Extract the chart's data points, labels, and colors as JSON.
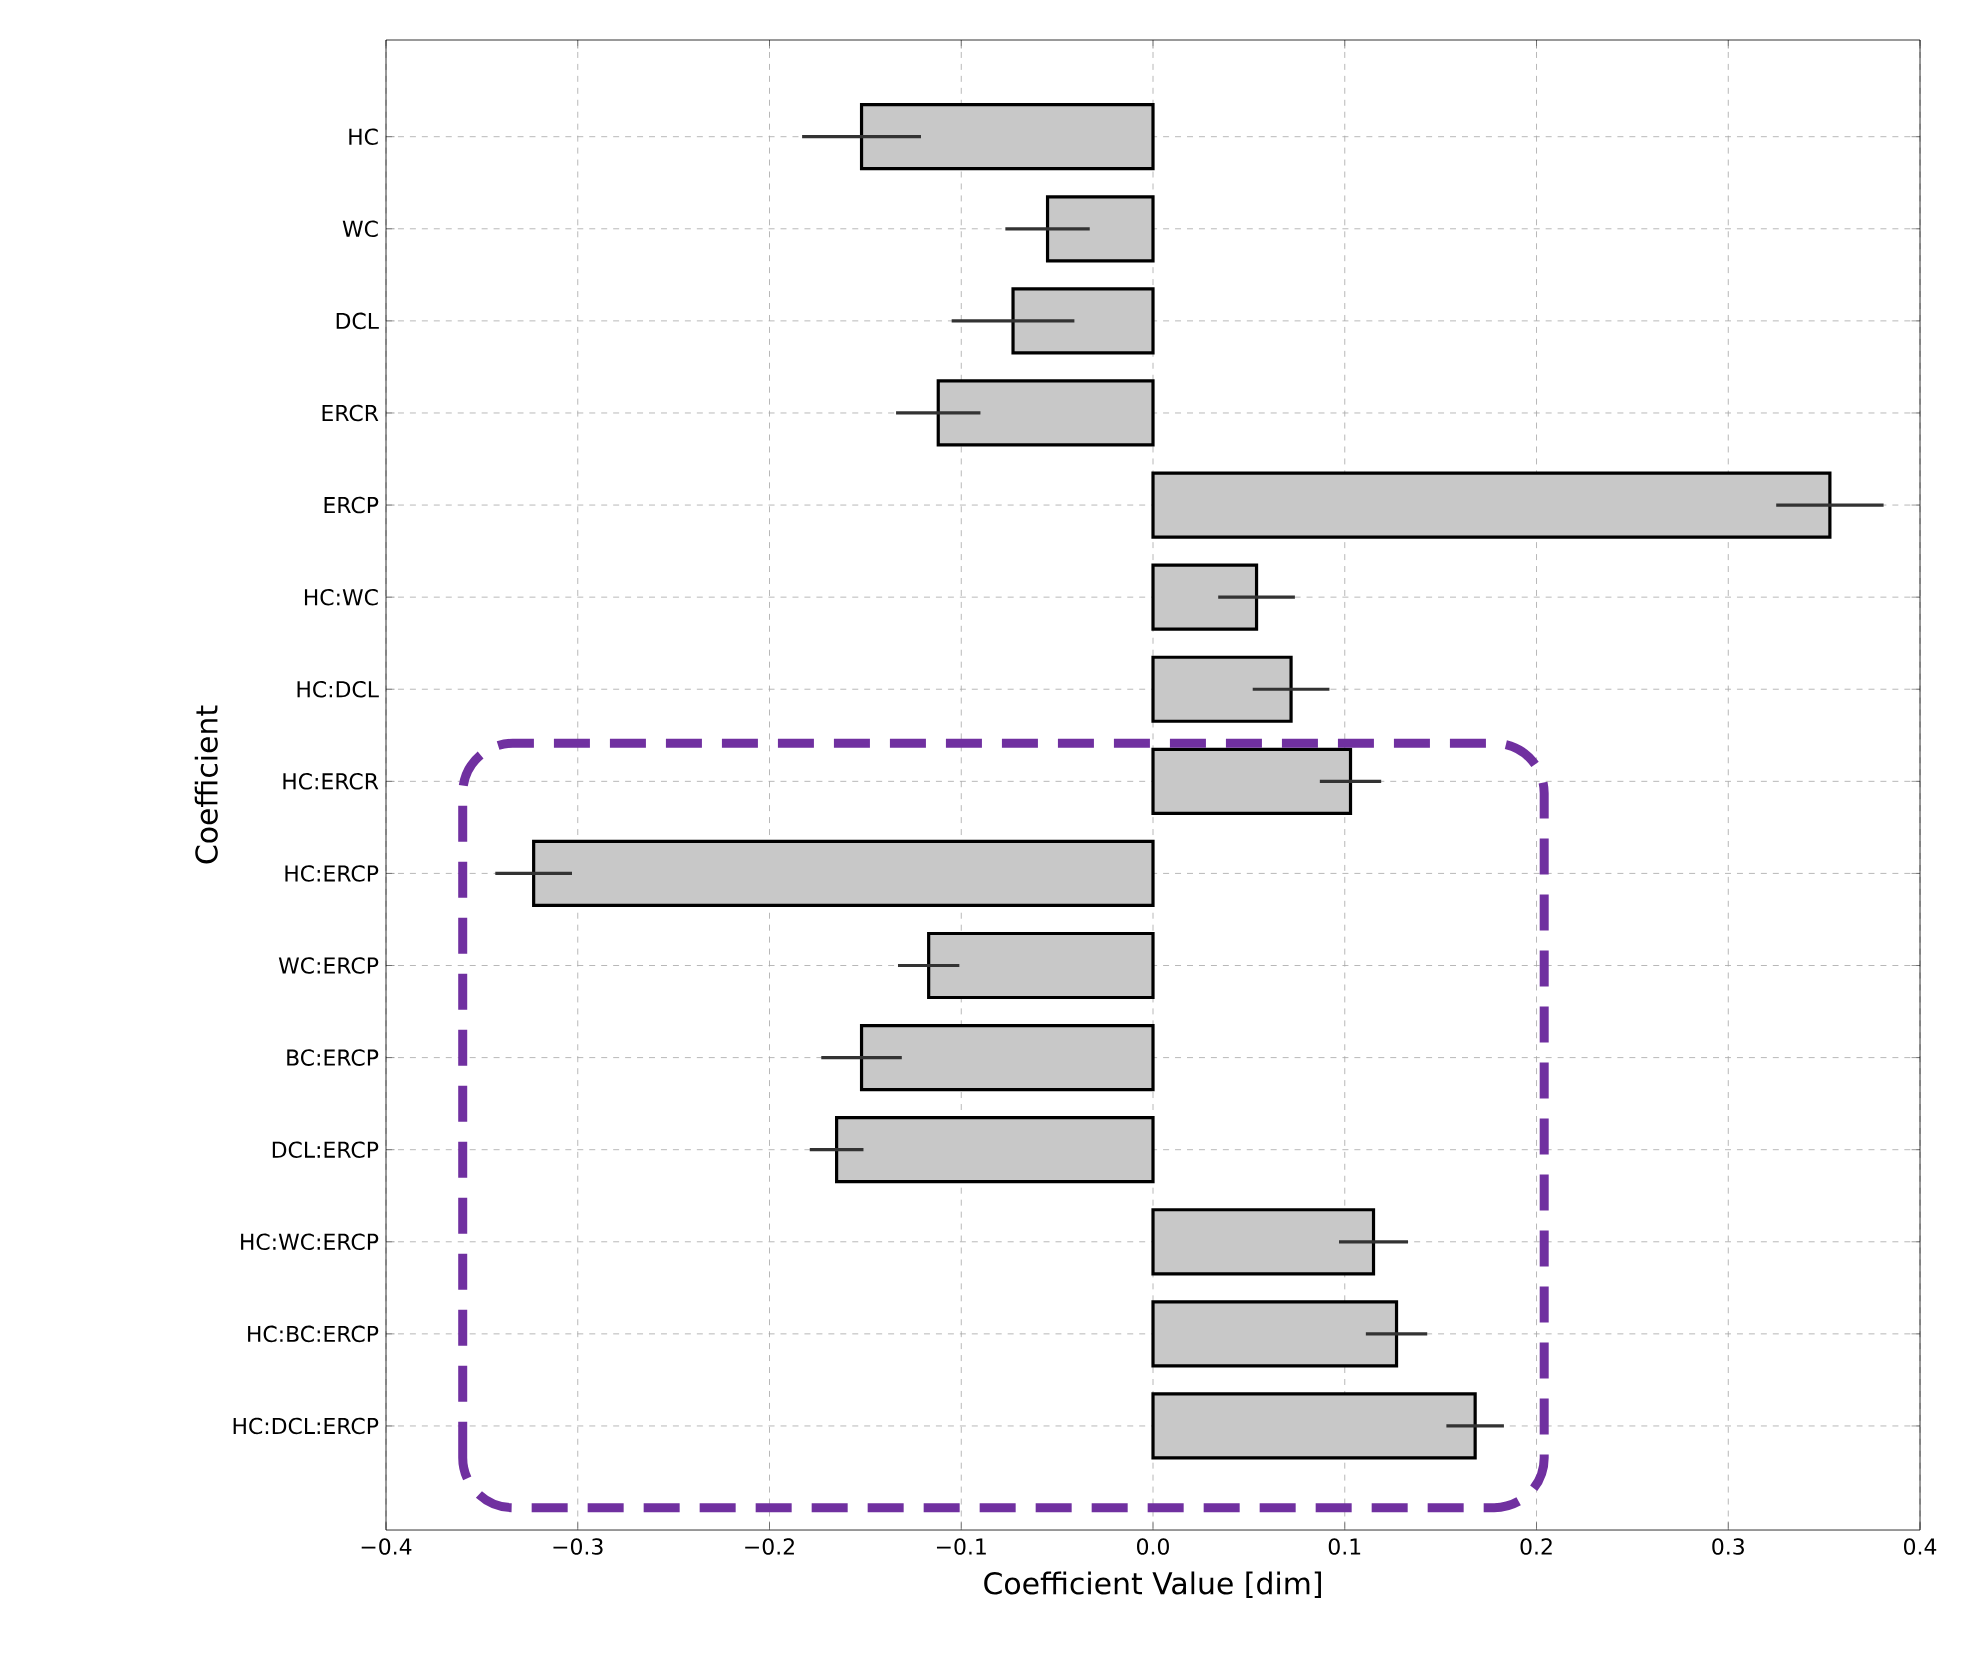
{
  "chart_data": {
    "type": "bar",
    "orientation": "horizontal",
    "xlabel": "Coefficient Value [dim]",
    "ylabel": "Coefficient",
    "categories": [
      "HC",
      "WC",
      "DCL",
      "ERCR",
      "ERCP",
      "HC:WC",
      "HC:DCL",
      "HC:ERCR",
      "HC:ERCP",
      "WC:ERCP",
      "BC:ERCP",
      "DCL:ERCP",
      "HC:WC:ERCP",
      "HC:BC:ERCP",
      "HC:DCL:ERCP"
    ],
    "values": [
      -0.152,
      -0.055,
      -0.073,
      -0.112,
      0.353,
      0.054,
      0.072,
      0.103,
      -0.323,
      -0.117,
      -0.152,
      -0.165,
      0.115,
      0.127,
      0.168
    ],
    "errors": [
      0.031,
      0.022,
      0.032,
      0.022,
      0.028,
      0.02,
      0.02,
      0.016,
      0.02,
      0.016,
      0.021,
      0.014,
      0.018,
      0.016,
      0.015
    ],
    "color": "#c8c8c8",
    "xlim": [
      -0.4,
      0.4
    ],
    "xticks": [
      {
        "value": -0.4,
        "label": "−0.4"
      },
      {
        "value": -0.3,
        "label": "−0.3"
      },
      {
        "value": -0.2,
        "label": "−0.2"
      },
      {
        "value": -0.1,
        "label": "−0.1"
      },
      {
        "value": 0,
        "label": "0.0"
      },
      {
        "value": 0.1,
        "label": "0.1"
      },
      {
        "value": 0.2,
        "label": "0.2"
      },
      {
        "value": 0.3,
        "label": "0.3"
      },
      {
        "value": 0.4,
        "label": "0.4"
      }
    ],
    "grid": true
  }
}
